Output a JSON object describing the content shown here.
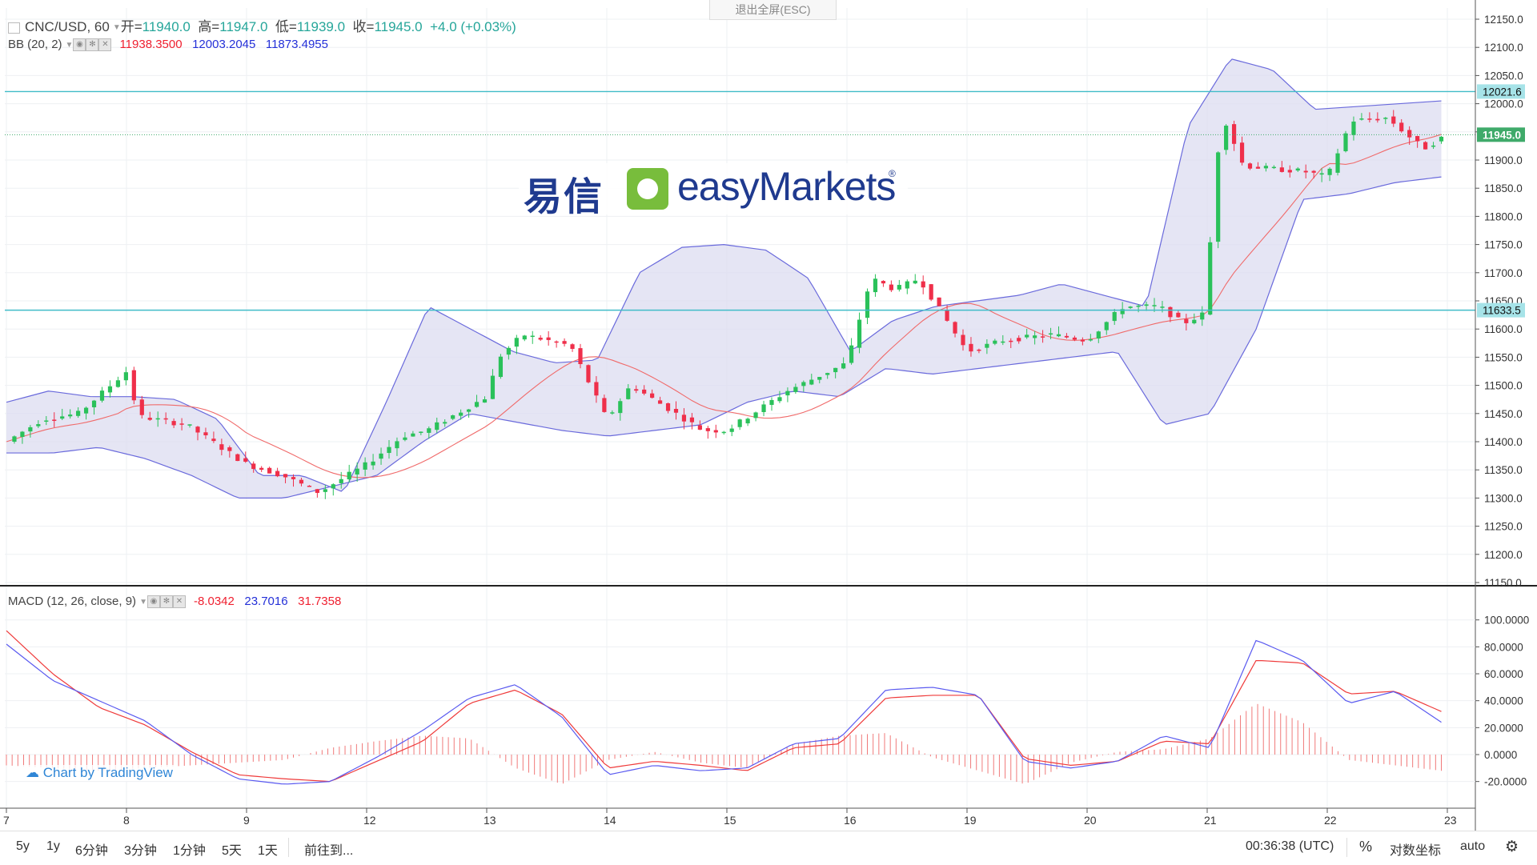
{
  "header": {
    "symbol": "CNC/USD, 60",
    "open_label": "开=",
    "open": "11940.0",
    "high_label": "高=",
    "high": "11947.0",
    "low_label": "低=",
    "low": "11939.0",
    "close_label": "收=",
    "close": "11945.0",
    "change": "+4.0 (+0.03%)"
  },
  "bb_legend": {
    "label": "BB (20, 2)",
    "basis": "11938.3500",
    "upper": "12003.2045",
    "lower": "11873.4955"
  },
  "macd_legend": {
    "label": "MACD (12, 26, close, 9)",
    "hist": "-8.0342",
    "macd": "23.7016",
    "signal": "31.7358"
  },
  "exit_fullscreen": "退出全屏(ESC)",
  "logo": {
    "cn": "易信",
    "en": "easyMarkets",
    "reg": "®"
  },
  "tv_brand": "Chart by TradingView",
  "bottom": {
    "timeframes": [
      "5y",
      "1y",
      "6分钟",
      "3分钟",
      "1分钟",
      "5天",
      "1天"
    ],
    "goto": "前往到...",
    "clock": "00:36:38 (UTC)",
    "percent": "%",
    "log": "对数坐标",
    "auto": "auto"
  },
  "colors": {
    "up": "#26a69a",
    "up_bright": "#2ac15a",
    "down": "#ef2f4a",
    "band_fill": "#dcdcf0",
    "band_line": "#6a6adc",
    "basis": "#f06a6a",
    "hline": "#40bcc8",
    "price_tag": "#3faa6a"
  },
  "chart_data": [
    {
      "type": "candlestick",
      "title": "",
      "x_ticks": [
        "7",
        "8",
        "9",
        "12",
        "13",
        "14",
        "15",
        "16",
        "19",
        "20",
        "21",
        "22",
        "23"
      ],
      "y_ticks": [
        "11150.0",
        "11200.0",
        "11250.0",
        "11300.0",
        "11350.0",
        "11400.0",
        "11450.0",
        "11500.0",
        "11550.0",
        "11600.0",
        "11650.0",
        "11700.0",
        "11750.0",
        "11800.0",
        "11850.0",
        "11900.0",
        "11950.0",
        "12000.0",
        "12050.0",
        "12100.0",
        "12150.0"
      ],
      "ylim": [
        11150,
        12160
      ],
      "price_levels": [
        {
          "label": "12021.6",
          "value": 12021.6
        },
        {
          "label": "11633.5",
          "value": 11633.5
        }
      ],
      "last_price": {
        "label": "11945.0",
        "value": 11945.0
      },
      "close_path_day_index": [
        0,
        0.3,
        0.6,
        1,
        1.1,
        1.5,
        2,
        2.3,
        2.6,
        3,
        3.3,
        3.5,
        4,
        4.1,
        4.3,
        4.7,
        5,
        5.2,
        5.5,
        5.8,
        6,
        6.5,
        6.8,
        7,
        7.2,
        7.4,
        7.6,
        8,
        8.3,
        8.7,
        9,
        9.3,
        9.6,
        9.8,
        10,
        10.05,
        10.15,
        10.3,
        10.5,
        10.8,
        11,
        11.2,
        11.5,
        11.8,
        12
      ],
      "close_path": [
        11400,
        11440,
        11450,
        11525,
        11445,
        11430,
        11360,
        11340,
        11310,
        11360,
        11410,
        11420,
        11480,
        11550,
        11590,
        11570,
        11440,
        11500,
        11460,
        11420,
        11420,
        11490,
        11520,
        11540,
        11690,
        11670,
        11690,
        11560,
        11580,
        11590,
        11580,
        11640,
        11640,
        11610,
        11630,
        11880,
        11970,
        11890,
        11885,
        11880,
        11870,
        11970,
        11975,
        11920,
        11945
      ],
      "bb_upper_path": [
        11470,
        11490,
        11480,
        11480,
        11475,
        11440,
        11340,
        11340,
        11310,
        11470,
        11640,
        11600,
        11560,
        11540,
        11545,
        11700,
        11745,
        11750,
        11740,
        11690,
        11560,
        11615,
        11640,
        11650,
        11660,
        11680,
        11660,
        11640,
        11960,
        12080,
        12060,
        11990,
        11995,
        12000,
        12005
      ],
      "bb_lower_path": [
        11380,
        11380,
        11390,
        11370,
        11340,
        11300,
        11300,
        11320,
        11340,
        11400,
        11450,
        11435,
        11420,
        11410,
        11420,
        11430,
        11470,
        11490,
        11480,
        11530,
        11520,
        11530,
        11540,
        11550,
        11560,
        11430,
        11450,
        11600,
        11830,
        11840,
        11860,
        11870
      ],
      "macd": {
        "y_ticks": [
          "-20.0000",
          "0.0000",
          "20.0000",
          "40.0000",
          "60.0000",
          "80.0000",
          "100.0000"
        ],
        "ylim": [
          -25,
          100
        ],
        "macd_line": [
          82,
          55,
          40,
          25,
          0,
          -18,
          -22,
          -20,
          -2,
          18,
          42,
          52,
          28,
          -15,
          -8,
          -12,
          -10,
          8,
          12,
          48,
          50,
          44,
          -5,
          -10,
          -5,
          14,
          5,
          85,
          70,
          38,
          47,
          24
        ],
        "signal_line": [
          92,
          60,
          35,
          22,
          2,
          -15,
          -18,
          -20,
          -5,
          10,
          38,
          48,
          30,
          -10,
          -5,
          -8,
          -12,
          5,
          8,
          42,
          44,
          44,
          -3,
          -8,
          -5,
          10,
          8,
          70,
          68,
          45,
          47,
          32
        ],
        "hist_sample": [
          -8,
          -10,
          -12,
          -10,
          -8,
          -6,
          -4,
          5,
          10,
          14,
          12,
          -10,
          -22,
          -4,
          2,
          -6,
          -10,
          8,
          14,
          16,
          -2,
          -12,
          -22,
          -6,
          2,
          4,
          12,
          38,
          24,
          -4,
          -8,
          -12
        ]
      }
    }
  ]
}
